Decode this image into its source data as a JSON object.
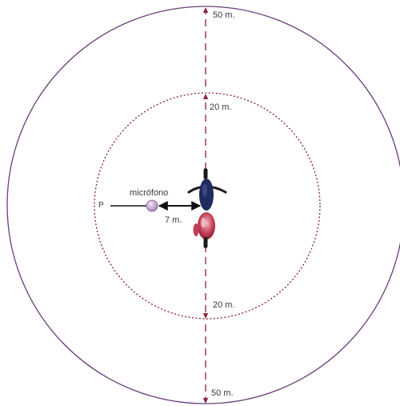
{
  "labels": {
    "top_outer": "50 m.",
    "top_inner": "20 m.",
    "bottom_inner": "20 m.",
    "bottom_outer": "50 m.",
    "microphone": "micrófono",
    "microphone_distance": "7 m.",
    "point": "P"
  },
  "colors": {
    "circle": "#6b3f7a",
    "dashed_line": "#8b1f3a",
    "arrow": "#111111",
    "microphone": "#c9a6d9",
    "motorcycle_body": "#1f2c5c",
    "motorcycle_rider": "#b8324a"
  }
}
